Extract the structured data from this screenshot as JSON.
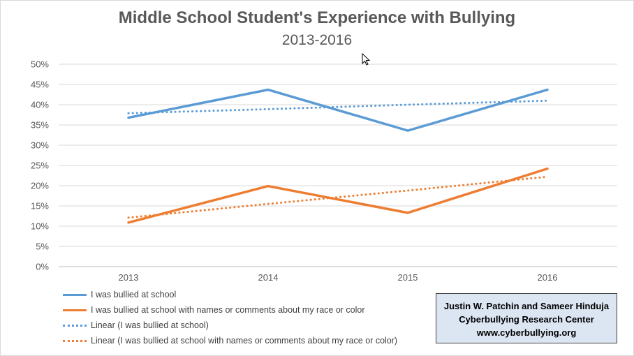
{
  "chart_data": {
    "type": "line",
    "title": "Middle School Student's Experience with Bullying",
    "subtitle": "2013-2016",
    "categories": [
      "2013",
      "2014",
      "2015",
      "2016"
    ],
    "ylim": [
      0,
      50
    ],
    "yticks": [
      "0%",
      "5%",
      "10%",
      "15%",
      "20%",
      "25%",
      "30%",
      "35%",
      "40%",
      "45%",
      "50%"
    ],
    "grid": true,
    "legend_position": "bottom-left",
    "series": [
      {
        "name": "I was bullied at school",
        "values": [
          36.8,
          43.7,
          33.6,
          43.7
        ],
        "color": "#5b9bd5",
        "style": "solid"
      },
      {
        "name": "I was bullied at school with names or comments about my race or color",
        "values": [
          10.9,
          19.9,
          13.3,
          24.2
        ],
        "color": "#ed7d31",
        "style": "solid"
      },
      {
        "name": "Linear (I was bullied at school)",
        "values": [
          37.9,
          38.9,
          40.0,
          41.0
        ],
        "color": "#5b9bd5",
        "style": "dotted"
      },
      {
        "name": "Linear (I was bullied at school with names or comments about my race or color)",
        "values": [
          12.1,
          15.5,
          18.8,
          22.2
        ],
        "color": "#ed7d31",
        "style": "dotted"
      }
    ]
  },
  "credit_box": {
    "line1": "Justin W. Patchin and Sameer Hinduja",
    "line2": "Cyberbullying Research Center",
    "line3": "www.cyberbullying.org"
  }
}
